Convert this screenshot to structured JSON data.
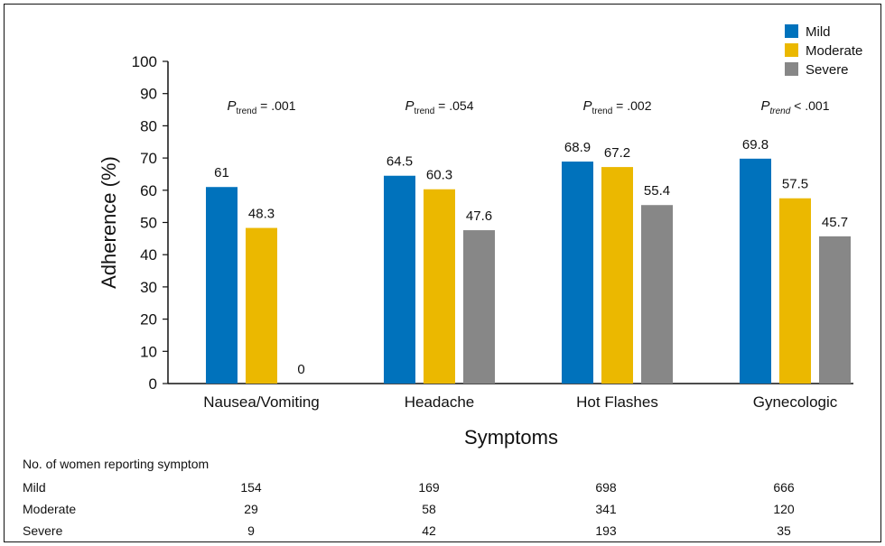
{
  "chart_data": {
    "type": "bar",
    "categories": [
      "Nausea/Vomiting",
      "Headache",
      "Hot Flashes",
      "Gynecologic"
    ],
    "series": [
      {
        "name": "Mild",
        "values": [
          61,
          64.5,
          68.9,
          69.8
        ],
        "color": "#0072BC"
      },
      {
        "name": "Moderate",
        "values": [
          48.3,
          60.3,
          67.2,
          57.5
        ],
        "color": "#EBB800"
      },
      {
        "name": "Severe",
        "values": [
          0,
          47.6,
          55.4,
          45.7
        ],
        "color": "#878787"
      }
    ],
    "data_labels": [
      [
        "61",
        "48.3",
        "0"
      ],
      [
        "64.5",
        "60.3",
        "47.6"
      ],
      [
        "68.9",
        "67.2",
        "55.4"
      ],
      [
        "69.8",
        "57.5",
        "45.7"
      ]
    ],
    "annotations": [
      {
        "prefix": "P",
        "subscript": "trend",
        "text": " = .001"
      },
      {
        "prefix": "P",
        "subscript": "trend",
        "text": " = .054"
      },
      {
        "prefix": "P",
        "subscript": "trend",
        "text": " = .002"
      },
      {
        "prefix": "P",
        "subscript": "trend",
        "text": " < .001"
      }
    ],
    "xlabel": "Symptoms",
    "ylabel": "Adherence (%)",
    "ylim": [
      0,
      100
    ],
    "yticks": [
      0,
      10,
      20,
      30,
      40,
      50,
      60,
      70,
      80,
      90,
      100
    ],
    "grid": false,
    "legend_position": "top-right"
  },
  "table": {
    "title": "No. of women reporting symptom",
    "rows": [
      {
        "label": "Mild",
        "values": [
          "154",
          "169",
          "698",
          "666"
        ]
      },
      {
        "label": "Moderate",
        "values": [
          "29",
          "58",
          "341",
          "120"
        ]
      },
      {
        "label": "Severe",
        "values": [
          "9",
          "42",
          "193",
          "35"
        ]
      }
    ]
  }
}
